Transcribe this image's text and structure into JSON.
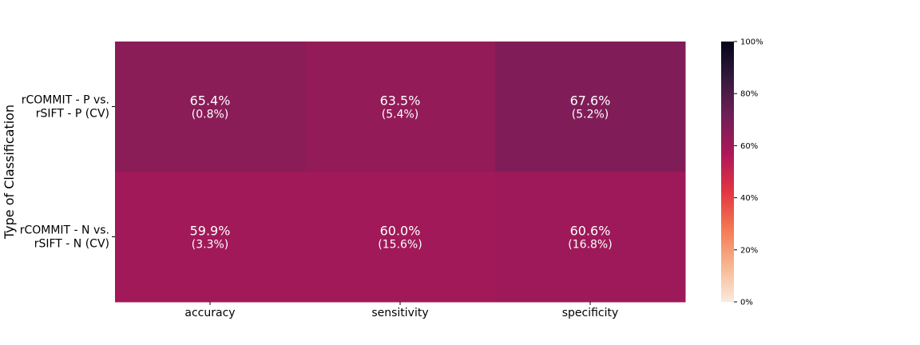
{
  "chart_data": {
    "type": "heatmap",
    "ylabel": "Type of Classification",
    "xlabel": "",
    "columns": [
      "accuracy",
      "sensitivity",
      "specificity"
    ],
    "rows": [
      [
        "rCOMMIT - P vs.",
        "rSIFT - P (CV)"
      ],
      [
        "rCOMMIT - N vs.",
        "rSIFT - N (CV)"
      ]
    ],
    "values": [
      [
        65.4,
        63.5,
        67.6
      ],
      [
        59.9,
        60.0,
        60.6
      ]
    ],
    "value_labels": [
      [
        "65.4%",
        "63.5%",
        "67.6%"
      ],
      [
        "59.9%",
        "60.0%",
        "60.6%"
      ]
    ],
    "sd_labels": [
      [
        "(0.8%)",
        "(5.4%)",
        "(5.2%)"
      ],
      [
        "(3.3%)",
        "(15.6%)",
        "(16.8%)"
      ]
    ],
    "colorbar": {
      "range": [
        0,
        100
      ],
      "ticks": [
        "0%",
        "20%",
        "40%",
        "60%",
        "80%",
        "100%"
      ],
      "colormap": "rocket_r",
      "stops": [
        "#faebdd",
        "#f6b48f",
        "#f37651",
        "#e13342",
        "#ad1759",
        "#701f57",
        "#35193e",
        "#03051a"
      ]
    }
  }
}
